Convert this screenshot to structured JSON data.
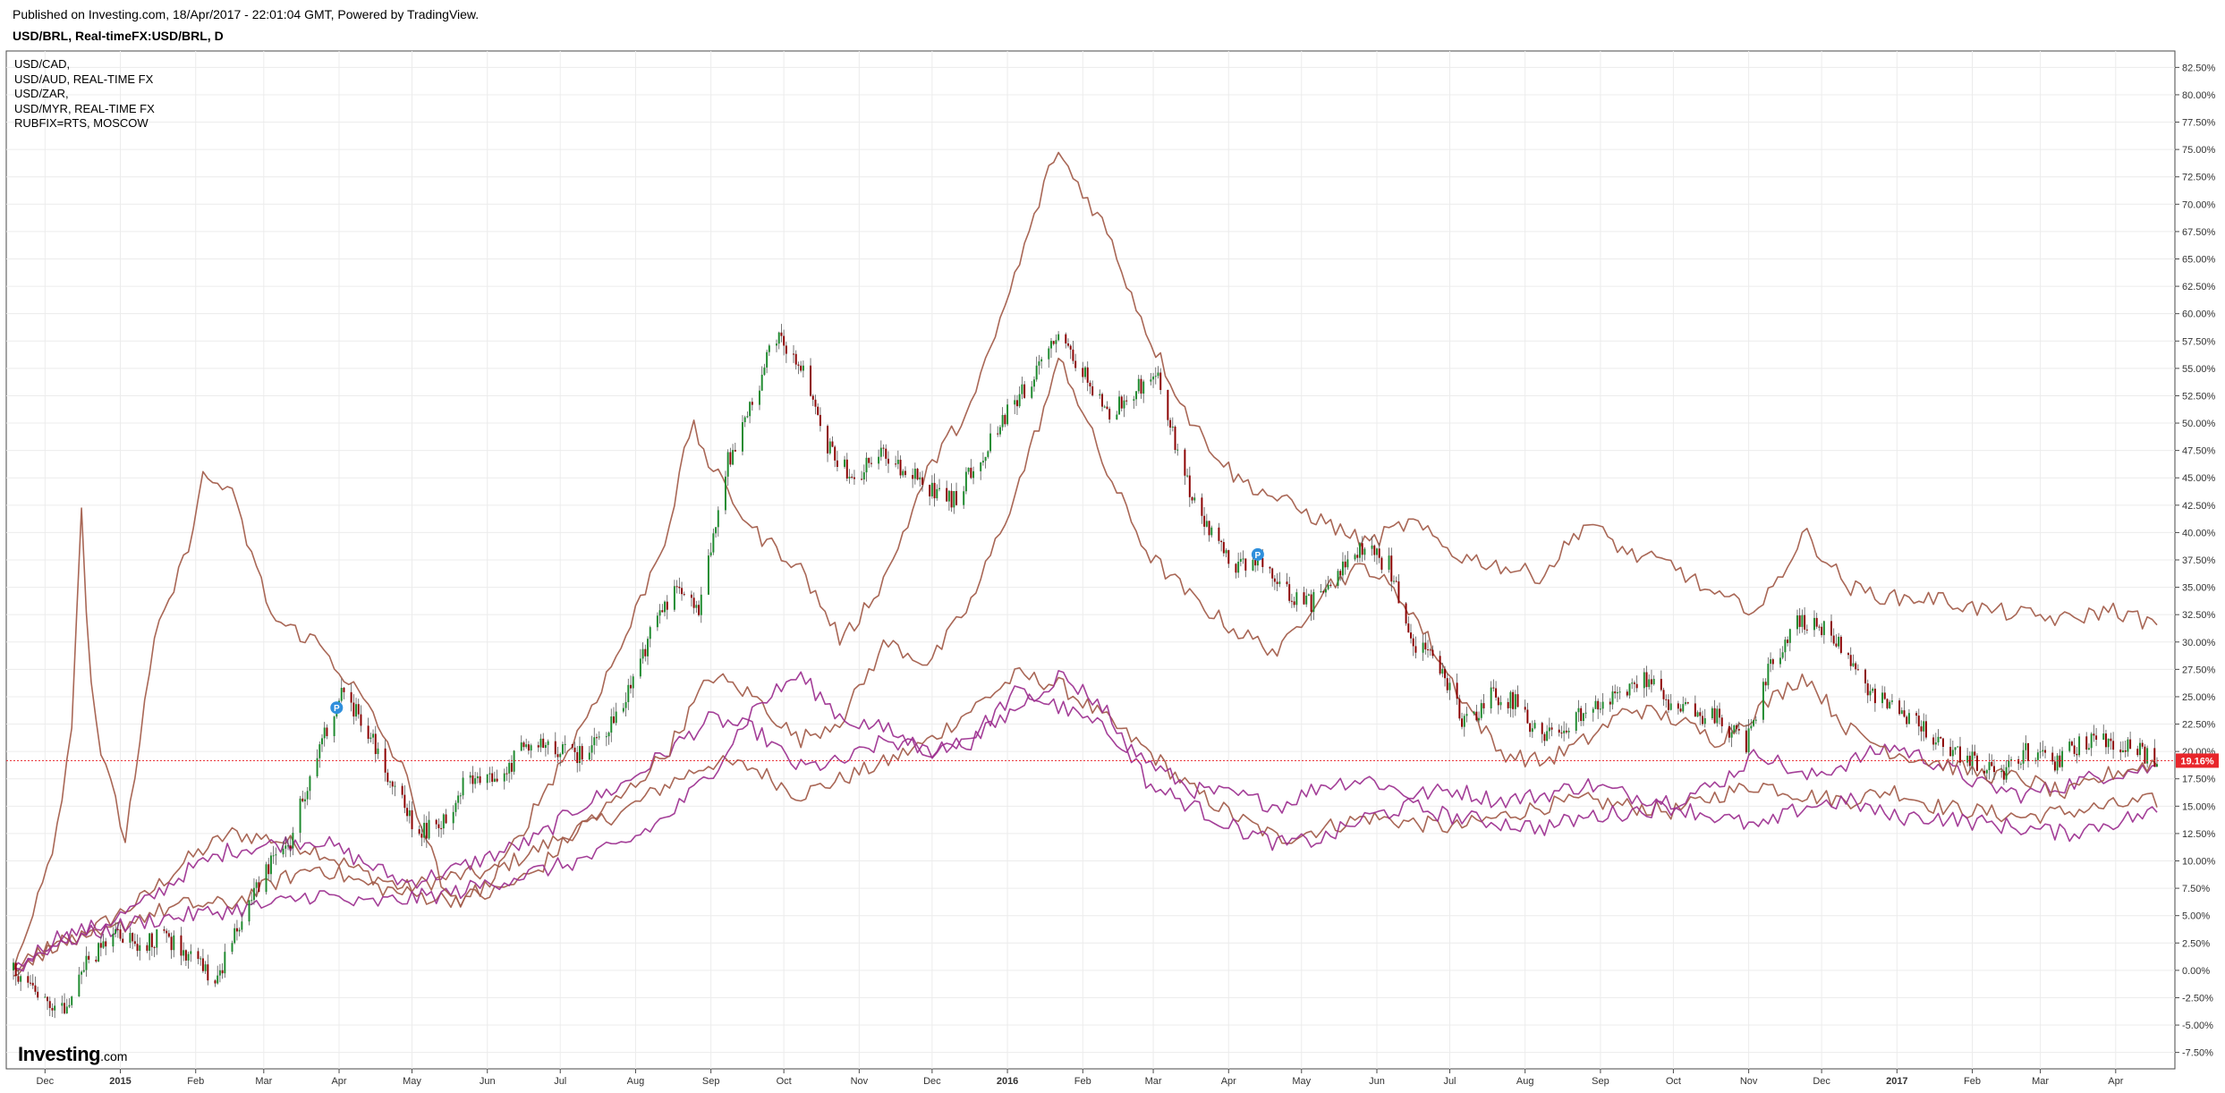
{
  "header": {
    "published": "Published on Investing.com, 18/Apr/2017 - 22:01:04 GMT, Powered by TradingView.",
    "symbol_title": "USD/BRL, Real-timeFX:USD/BRL, D"
  },
  "legend": [
    "USD/CAD,",
    "USD/AUD, REAL-TIME FX",
    "USD/ZAR,",
    "USD/MYR, REAL-TIME FX",
    "RUBFIX=RTS, MOSCOW"
  ],
  "logo": {
    "brand": "Investing",
    "suffix": ".com"
  },
  "colors": {
    "up_candle": "#1e8a2e",
    "down_candle": "#8b0000",
    "compare_brown": "#a25a48",
    "compare_purple": "#9c2f8f",
    "current_price": "#e8262b",
    "grid": "#ececec"
  },
  "price_badge": "19.16%",
  "chart_data": {
    "type": "line",
    "main_series_type": "candlestick",
    "y_unit": "%",
    "ylim": [
      -9,
      84
    ],
    "y_ticks": [
      -7.5,
      -5,
      -2.5,
      0,
      2.5,
      5,
      7.5,
      10,
      12.5,
      15,
      17.5,
      20,
      22.5,
      25,
      27.5,
      30,
      32.5,
      35,
      37.5,
      40,
      42.5,
      45,
      47.5,
      50,
      52.5,
      55,
      57.5,
      60,
      62.5,
      65,
      67.5,
      70,
      72.5,
      75,
      77.5,
      80,
      82.5
    ],
    "y_tick_labels": [
      "-7.50%",
      "-5.00%",
      "-2.50%",
      "0.00%",
      "2.50%",
      "5.00%",
      "7.50%",
      "10.00%",
      "12.50%",
      "15.00%",
      "17.50%",
      "20.00%",
      "22.50%",
      "25.00%",
      "27.50%",
      "30.00%",
      "32.50%",
      "35.00%",
      "37.50%",
      "40.00%",
      "42.50%",
      "45.00%",
      "47.50%",
      "50.00%",
      "52.50%",
      "55.00%",
      "57.50%",
      "60.00%",
      "62.50%",
      "65.00%",
      "67.50%",
      "70.00%",
      "72.50%",
      "75.00%",
      "77.50%",
      "80.00%",
      "82.50%"
    ],
    "x_range": [
      "2014-11-18",
      "2017-04-18"
    ],
    "x_tick_labels": [
      {
        "date": "2014-12-01",
        "label": "Dec",
        "bold": false
      },
      {
        "date": "2015-01-01",
        "label": "2015",
        "bold": true
      },
      {
        "date": "2015-02-01",
        "label": "Feb",
        "bold": false
      },
      {
        "date": "2015-03-01",
        "label": "Mar",
        "bold": false
      },
      {
        "date": "2015-04-01",
        "label": "Apr",
        "bold": false
      },
      {
        "date": "2015-05-01",
        "label": "May",
        "bold": false
      },
      {
        "date": "2015-06-01",
        "label": "Jun",
        "bold": false
      },
      {
        "date": "2015-07-01",
        "label": "Jul",
        "bold": false
      },
      {
        "date": "2015-08-01",
        "label": "Aug",
        "bold": false
      },
      {
        "date": "2015-09-01",
        "label": "Sep",
        "bold": false
      },
      {
        "date": "2015-10-01",
        "label": "Oct",
        "bold": false
      },
      {
        "date": "2015-11-01",
        "label": "Nov",
        "bold": false
      },
      {
        "date": "2015-12-01",
        "label": "Dec",
        "bold": false
      },
      {
        "date": "2016-01-01",
        "label": "2016",
        "bold": true
      },
      {
        "date": "2016-02-01",
        "label": "Feb",
        "bold": false
      },
      {
        "date": "2016-03-01",
        "label": "Mar",
        "bold": false
      },
      {
        "date": "2016-04-01",
        "label": "Apr",
        "bold": false
      },
      {
        "date": "2016-05-01",
        "label": "May",
        "bold": false
      },
      {
        "date": "2016-06-01",
        "label": "Jun",
        "bold": false
      },
      {
        "date": "2016-07-01",
        "label": "Jul",
        "bold": false
      },
      {
        "date": "2016-08-01",
        "label": "Aug",
        "bold": false
      },
      {
        "date": "2016-09-01",
        "label": "Sep",
        "bold": false
      },
      {
        "date": "2016-10-01",
        "label": "Oct",
        "bold": false
      },
      {
        "date": "2016-11-01",
        "label": "Nov",
        "bold": false
      },
      {
        "date": "2016-12-01",
        "label": "Dec",
        "bold": false
      },
      {
        "date": "2017-01-01",
        "label": "2017",
        "bold": true
      },
      {
        "date": "2017-02-01",
        "label": "Feb",
        "bold": false
      },
      {
        "date": "2017-03-01",
        "label": "Mar",
        "bold": false
      },
      {
        "date": "2017-04-01",
        "label": "Apr",
        "bold": false
      }
    ],
    "current_value": 19.16,
    "markers": [
      {
        "date": "2015-03-31",
        "value": 24.0,
        "label": "P"
      },
      {
        "date": "2016-04-13",
        "value": 38.0,
        "label": "P"
      }
    ],
    "grid": true,
    "legend_position": "top-left",
    "main_series": {
      "name": "USD/BRL",
      "x": [
        "2014-11-18",
        "2014-11-28",
        "2014-12-08",
        "2014-12-18",
        "2014-12-29",
        "2015-01-08",
        "2015-01-19",
        "2015-01-29",
        "2015-02-09",
        "2015-02-19",
        "2015-03-02",
        "2015-03-12",
        "2015-03-23",
        "2015-04-02",
        "2015-04-13",
        "2015-04-23",
        "2015-05-04",
        "2015-05-14",
        "2015-05-25",
        "2015-06-04",
        "2015-06-15",
        "2015-06-25",
        "2015-07-06",
        "2015-07-16",
        "2015-07-27",
        "2015-08-06",
        "2015-08-17",
        "2015-08-27",
        "2015-09-07",
        "2015-09-17",
        "2015-09-28",
        "2015-10-08",
        "2015-10-19",
        "2015-10-29",
        "2015-11-09",
        "2015-11-19",
        "2015-11-30",
        "2015-12-10",
        "2015-12-21",
        "2015-12-31",
        "2016-01-11",
        "2016-01-21",
        "2016-02-01",
        "2016-02-11",
        "2016-02-22",
        "2016-03-03",
        "2016-03-14",
        "2016-03-24",
        "2016-04-04",
        "2016-04-14",
        "2016-04-25",
        "2016-05-05",
        "2016-05-16",
        "2016-05-26",
        "2016-06-06",
        "2016-06-16",
        "2016-06-27",
        "2016-07-07",
        "2016-07-18",
        "2016-07-28",
        "2016-08-08",
        "2016-08-18",
        "2016-08-29",
        "2016-09-08",
        "2016-09-19",
        "2016-09-29",
        "2016-10-10",
        "2016-10-20",
        "2016-10-31",
        "2016-11-10",
        "2016-11-21",
        "2016-12-01",
        "2016-12-12",
        "2016-12-22",
        "2017-01-02",
        "2017-01-12",
        "2017-01-23",
        "2017-02-02",
        "2017-02-13",
        "2017-02-23",
        "2017-03-06",
        "2017-03-16",
        "2017-03-27",
        "2017-04-06",
        "2017-04-18"
      ],
      "values": [
        0.0,
        -2.0,
        -3.5,
        0.5,
        3.0,
        2.5,
        3.0,
        1.5,
        -1.0,
        4.0,
        9.0,
        12.0,
        20.0,
        25.5,
        22.0,
        17.0,
        12.5,
        13.5,
        18.0,
        17.0,
        20.0,
        21.0,
        19.5,
        21.0,
        24.5,
        30.0,
        35.0,
        33.0,
        46.0,
        51.5,
        58.0,
        55.0,
        48.0,
        45.0,
        47.0,
        46.0,
        44.0,
        43.0,
        47.0,
        50.5,
        54.0,
        57.5,
        55.0,
        50.5,
        53.0,
        54.0,
        45.0,
        40.0,
        36.5,
        37.5,
        34.5,
        33.5,
        36.0,
        38.5,
        37.0,
        30.0,
        28.0,
        22.5,
        25.0,
        24.5,
        21.0,
        22.5,
        24.0,
        25.0,
        27.0,
        24.0,
        23.5,
        23.0,
        20.5,
        28.0,
        32.0,
        31.5,
        29.0,
        25.0,
        24.0,
        22.0,
        20.0,
        19.0,
        18.0,
        20.0,
        19.0,
        20.5,
        21.0,
        20.5,
        19.16
      ]
    },
    "series": [
      {
        "name": "USD/CAD",
        "color": "compare_brown",
        "x": [
          "2014-11-18",
          "2014-12-05",
          "2014-12-23",
          "2015-01-10",
          "2015-01-28",
          "2015-02-15",
          "2015-03-05",
          "2015-03-23",
          "2015-04-10",
          "2015-04-28",
          "2015-05-16",
          "2015-06-03",
          "2015-06-21",
          "2015-07-09",
          "2015-07-27",
          "2015-08-14",
          "2015-09-01",
          "2015-09-19",
          "2015-10-07",
          "2015-10-25",
          "2015-11-12",
          "2015-11-30",
          "2015-12-18",
          "2016-01-05",
          "2016-01-23",
          "2016-02-10",
          "2016-02-28",
          "2016-03-17",
          "2016-04-04",
          "2016-04-22",
          "2016-05-10",
          "2016-05-28",
          "2016-06-15",
          "2016-07-03",
          "2016-07-21",
          "2016-08-08",
          "2016-08-26",
          "2016-09-13",
          "2016-10-01",
          "2016-10-19",
          "2016-11-06",
          "2016-11-24",
          "2016-12-12",
          "2016-12-30",
          "2017-01-17",
          "2017-02-04",
          "2017-02-22",
          "2017-03-12",
          "2017-03-30",
          "2017-04-18"
        ],
        "values": [
          0.0,
          2.0,
          4.0,
          6.5,
          10.0,
          12.5,
          12.0,
          11.0,
          9.0,
          7.5,
          8.5,
          9.0,
          11.0,
          13.0,
          14.5,
          17.0,
          19.0,
          18.5,
          16.0,
          17.5,
          19.0,
          21.0,
          24.0,
          27.0,
          26.0,
          23.0,
          20.0,
          16.5,
          14.0,
          12.0,
          13.0,
          14.0,
          13.5,
          13.0,
          14.0,
          15.0,
          15.5,
          15.0,
          14.5,
          16.0,
          17.0,
          16.0,
          15.5,
          16.5,
          15.0,
          14.5,
          14.0,
          14.5,
          15.0,
          15.5
        ]
      },
      {
        "name": "USD/AUD",
        "color": "compare_purple",
        "x": [
          "2014-11-18",
          "2014-12-05",
          "2014-12-23",
          "2015-01-10",
          "2015-01-28",
          "2015-02-15",
          "2015-03-05",
          "2015-03-23",
          "2015-04-10",
          "2015-04-28",
          "2015-05-16",
          "2015-06-03",
          "2015-06-21",
          "2015-07-09",
          "2015-07-27",
          "2015-08-14",
          "2015-09-01",
          "2015-09-19",
          "2015-10-07",
          "2015-10-25",
          "2015-11-12",
          "2015-11-30",
          "2015-12-18",
          "2016-01-05",
          "2016-01-23",
          "2016-02-10",
          "2016-02-28",
          "2016-03-17",
          "2016-04-04",
          "2016-04-22",
          "2016-05-10",
          "2016-05-28",
          "2016-06-15",
          "2016-07-03",
          "2016-07-21",
          "2016-08-08",
          "2016-08-26",
          "2016-09-13",
          "2016-10-01",
          "2016-10-19",
          "2016-11-06",
          "2016-11-24",
          "2016-12-12",
          "2016-12-30",
          "2017-01-17",
          "2017-02-04",
          "2017-02-22",
          "2017-03-12",
          "2017-03-30",
          "2017-04-18"
        ],
        "values": [
          0.0,
          3.0,
          4.0,
          6.0,
          9.0,
          11.0,
          11.5,
          12.0,
          10.0,
          8.0,
          9.0,
          10.5,
          12.0,
          15.0,
          17.0,
          20.0,
          23.0,
          22.0,
          18.5,
          19.0,
          21.0,
          20.0,
          21.5,
          25.5,
          24.0,
          22.0,
          19.0,
          16.5,
          16.0,
          15.0,
          17.0,
          17.5,
          16.0,
          16.5,
          15.5,
          16.0,
          17.0,
          16.0,
          15.5,
          17.0,
          20.0,
          17.5,
          19.0,
          20.5,
          19.0,
          17.0,
          16.0,
          17.0,
          18.0,
          18.5
        ]
      },
      {
        "name": "USD/ZAR",
        "color": "compare_brown",
        "x": [
          "2014-11-18",
          "2014-12-05",
          "2014-12-23",
          "2015-01-10",
          "2015-01-28",
          "2015-02-15",
          "2015-03-05",
          "2015-03-23",
          "2015-04-10",
          "2015-04-28",
          "2015-05-16",
          "2015-06-03",
          "2015-06-21",
          "2015-07-09",
          "2015-07-27",
          "2015-08-14",
          "2015-09-01",
          "2015-09-19",
          "2015-10-07",
          "2015-10-25",
          "2015-11-12",
          "2015-11-30",
          "2015-12-18",
          "2016-01-05",
          "2016-01-23",
          "2016-02-10",
          "2016-02-28",
          "2016-03-17",
          "2016-04-04",
          "2016-04-22",
          "2016-05-10",
          "2016-05-28",
          "2016-06-15",
          "2016-07-03",
          "2016-07-21",
          "2016-08-08",
          "2016-08-26",
          "2016-09-13",
          "2016-10-01",
          "2016-10-19",
          "2016-11-06",
          "2016-11-24",
          "2016-12-12",
          "2016-12-30",
          "2017-01-17",
          "2017-02-04",
          "2017-02-22",
          "2017-03-12",
          "2017-03-30",
          "2017-04-18"
        ],
        "values": [
          0.0,
          2.5,
          3.0,
          5.0,
          6.0,
          6.0,
          8.0,
          9.5,
          8.0,
          7.0,
          6.5,
          7.0,
          9.0,
          13.0,
          16.0,
          20.0,
          27.0,
          25.0,
          21.0,
          23.0,
          30.0,
          28.0,
          34.0,
          44.0,
          56.0,
          46.0,
          38.0,
          34.0,
          31.0,
          29.0,
          35.0,
          37.0,
          33.0,
          26.0,
          20.0,
          19.0,
          21.0,
          24.0,
          23.0,
          21.0,
          24.0,
          27.0,
          22.0,
          20.0,
          19.0,
          18.0,
          17.5,
          16.0,
          18.0,
          19.0
        ]
      },
      {
        "name": "USD/MYR",
        "color": "compare_purple",
        "x": [
          "2014-11-18",
          "2014-12-05",
          "2014-12-23",
          "2015-01-10",
          "2015-01-28",
          "2015-02-15",
          "2015-03-05",
          "2015-03-23",
          "2015-04-10",
          "2015-04-28",
          "2015-05-16",
          "2015-06-03",
          "2015-06-21",
          "2015-07-09",
          "2015-07-27",
          "2015-08-14",
          "2015-09-01",
          "2015-09-19",
          "2015-10-07",
          "2015-10-25",
          "2015-11-12",
          "2015-11-30",
          "2015-12-18",
          "2016-01-05",
          "2016-01-23",
          "2016-02-10",
          "2016-02-28",
          "2016-03-17",
          "2016-04-04",
          "2016-04-22",
          "2016-05-10",
          "2016-05-28",
          "2016-06-15",
          "2016-07-03",
          "2016-07-21",
          "2016-08-08",
          "2016-08-26",
          "2016-09-13",
          "2016-10-01",
          "2016-10-19",
          "2016-11-06",
          "2016-11-24",
          "2016-12-12",
          "2016-12-30",
          "2017-01-17",
          "2017-02-04",
          "2017-02-22",
          "2017-03-12",
          "2017-03-30",
          "2017-04-18"
        ],
        "values": [
          0.0,
          2.5,
          3.5,
          4.5,
          5.0,
          5.5,
          6.0,
          7.0,
          6.0,
          6.5,
          7.0,
          8.0,
          9.0,
          10.0,
          11.5,
          14.0,
          18.0,
          24.0,
          27.0,
          23.0,
          22.0,
          20.0,
          21.0,
          24.0,
          27.0,
          24.0,
          17.0,
          15.0,
          13.0,
          11.5,
          12.0,
          14.0,
          15.0,
          14.0,
          13.5,
          13.0,
          14.0,
          14.5,
          15.0,
          14.0,
          13.0,
          15.0,
          15.5,
          14.0,
          14.0,
          13.5,
          13.0,
          12.5,
          13.5,
          14.5
        ]
      },
      {
        "name": "RUBFIX=RTS, MOSCOW",
        "color": "compare_brown",
        "x": [
          "2014-11-18",
          "2014-12-05",
          "2014-12-12",
          "2014-12-16",
          "2014-12-19",
          "2014-12-24",
          "2015-01-03",
          "2015-01-15",
          "2015-01-28",
          "2015-02-04",
          "2015-02-15",
          "2015-03-05",
          "2015-03-23",
          "2015-04-10",
          "2015-04-28",
          "2015-05-16",
          "2015-06-03",
          "2015-06-21",
          "2015-07-09",
          "2015-07-27",
          "2015-08-14",
          "2015-08-24",
          "2015-09-01",
          "2015-09-19",
          "2015-10-07",
          "2015-10-25",
          "2015-11-12",
          "2015-11-30",
          "2015-12-18",
          "2016-01-05",
          "2016-01-21",
          "2016-02-10",
          "2016-02-28",
          "2016-03-17",
          "2016-04-04",
          "2016-04-22",
          "2016-05-10",
          "2016-05-28",
          "2016-06-15",
          "2016-07-03",
          "2016-07-21",
          "2016-08-08",
          "2016-08-26",
          "2016-09-13",
          "2016-10-01",
          "2016-10-19",
          "2016-11-06",
          "2016-11-24",
          "2016-12-12",
          "2016-12-30",
          "2017-01-17",
          "2017-02-04",
          "2017-02-22",
          "2017-03-12",
          "2017-03-30",
          "2017-04-18"
        ],
        "values": [
          0.0,
          12.0,
          22.0,
          43.0,
          28.0,
          20.0,
          12.0,
          30.0,
          38.0,
          45.0,
          44.0,
          32.0,
          30.0,
          25.0,
          18.0,
          6.0,
          8.0,
          15.0,
          22.0,
          30.0,
          40.0,
          50.0,
          46.0,
          40.0,
          37.0,
          30.0,
          36.0,
          46.0,
          52.0,
          64.0,
          75.0,
          68.0,
          58.0,
          50.0,
          45.0,
          43.0,
          41.0,
          39.0,
          41.0,
          38.0,
          37.0,
          36.0,
          41.0,
          38.0,
          37.0,
          34.0,
          33.0,
          40.0,
          35.0,
          34.0,
          34.0,
          33.0,
          32.5,
          32.0,
          33.0,
          31.5
        ]
      }
    ]
  }
}
